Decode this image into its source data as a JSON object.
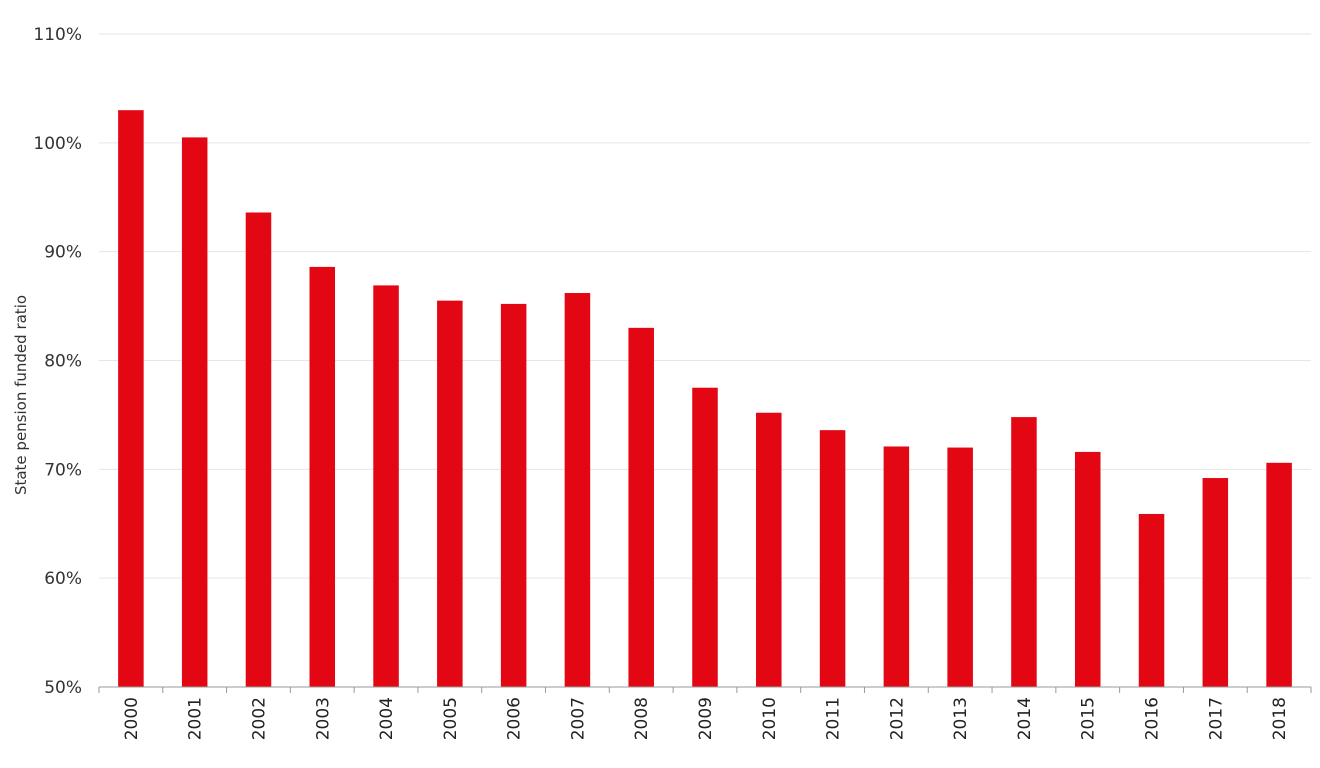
{
  "chart_data": {
    "type": "bar",
    "title": "",
    "xlabel": "",
    "ylabel": "State pension funded ratio",
    "categories": [
      "2000",
      "2001",
      "2002",
      "2003",
      "2004",
      "2005",
      "2006",
      "2007",
      "2008",
      "2009",
      "2010",
      "2011",
      "2012",
      "2013",
      "2014",
      "2015",
      "2016",
      "2017",
      "2018"
    ],
    "values": [
      103,
      100.5,
      93.6,
      88.6,
      86.9,
      85.5,
      85.2,
      86.2,
      83.0,
      77.5,
      75.2,
      73.6,
      72.1,
      72.0,
      74.8,
      71.6,
      65.9,
      69.2,
      70.6
    ],
    "unit": "%",
    "ylim": [
      50,
      110
    ],
    "yticks": [
      50,
      60,
      70,
      80,
      90,
      100,
      110
    ],
    "ytick_labels": [
      "50%",
      "60%",
      "70%",
      "80%",
      "90%",
      "100%",
      "110%"
    ],
    "grid": true,
    "bar_color": "#e30613"
  }
}
